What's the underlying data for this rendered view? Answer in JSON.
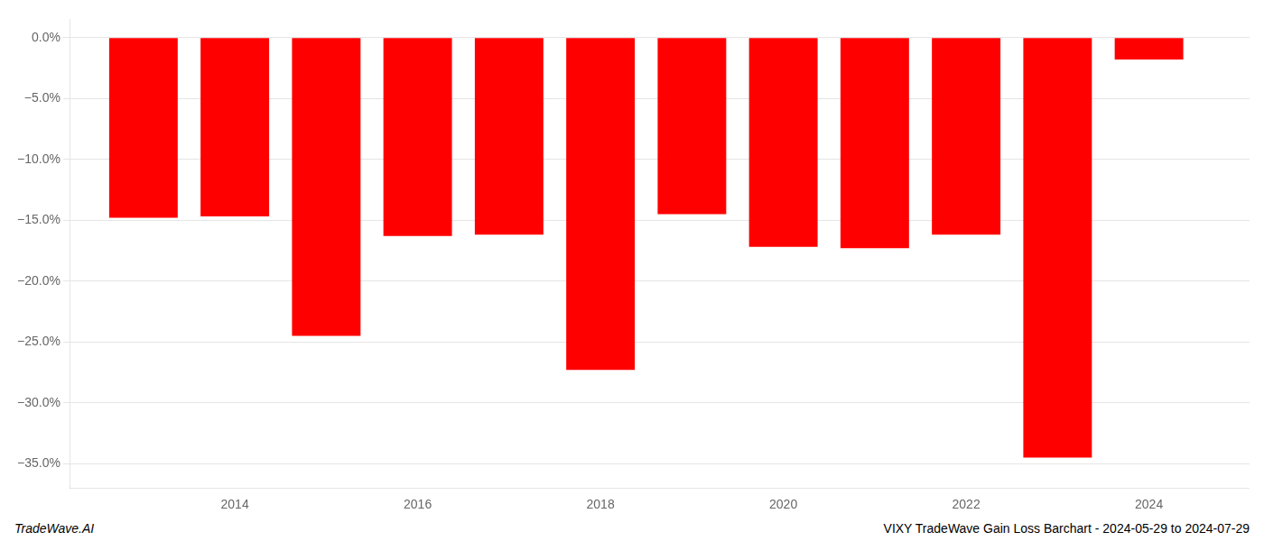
{
  "chart_data": {
    "type": "bar",
    "x": [
      2013,
      2014,
      2015,
      2016,
      2017,
      2018,
      2019,
      2020,
      2021,
      2022,
      2023,
      2024
    ],
    "values": [
      -14.8,
      -14.7,
      -24.5,
      -16.3,
      -16.2,
      -27.3,
      -14.5,
      -17.2,
      -17.3,
      -16.2,
      -34.5,
      -1.8
    ],
    "color": "#ff0000",
    "xlim": [
      2012.2,
      2025.1
    ],
    "xticks": [
      2014,
      2016,
      2018,
      2020,
      2022,
      2024
    ],
    "ylim": [
      -37,
      1.5
    ],
    "yticks": [
      {
        "value": 0,
        "label": "0.0%"
      },
      {
        "value": -5,
        "label": "−5.0%"
      },
      {
        "value": -10,
        "label": "−10.0%"
      },
      {
        "value": -15,
        "label": "−15.0%"
      },
      {
        "value": -20,
        "label": "−20.0%"
      },
      {
        "value": -25,
        "label": "−25.0%"
      },
      {
        "value": -30,
        "label": "−30.0%"
      },
      {
        "value": -35,
        "label": "−35.0%"
      }
    ],
    "grid": true,
    "annotations": [
      "TradeWave.AI",
      "VIXY TradeWave Gain Loss Barchart - 2024-05-29 to 2024-07-29"
    ]
  }
}
